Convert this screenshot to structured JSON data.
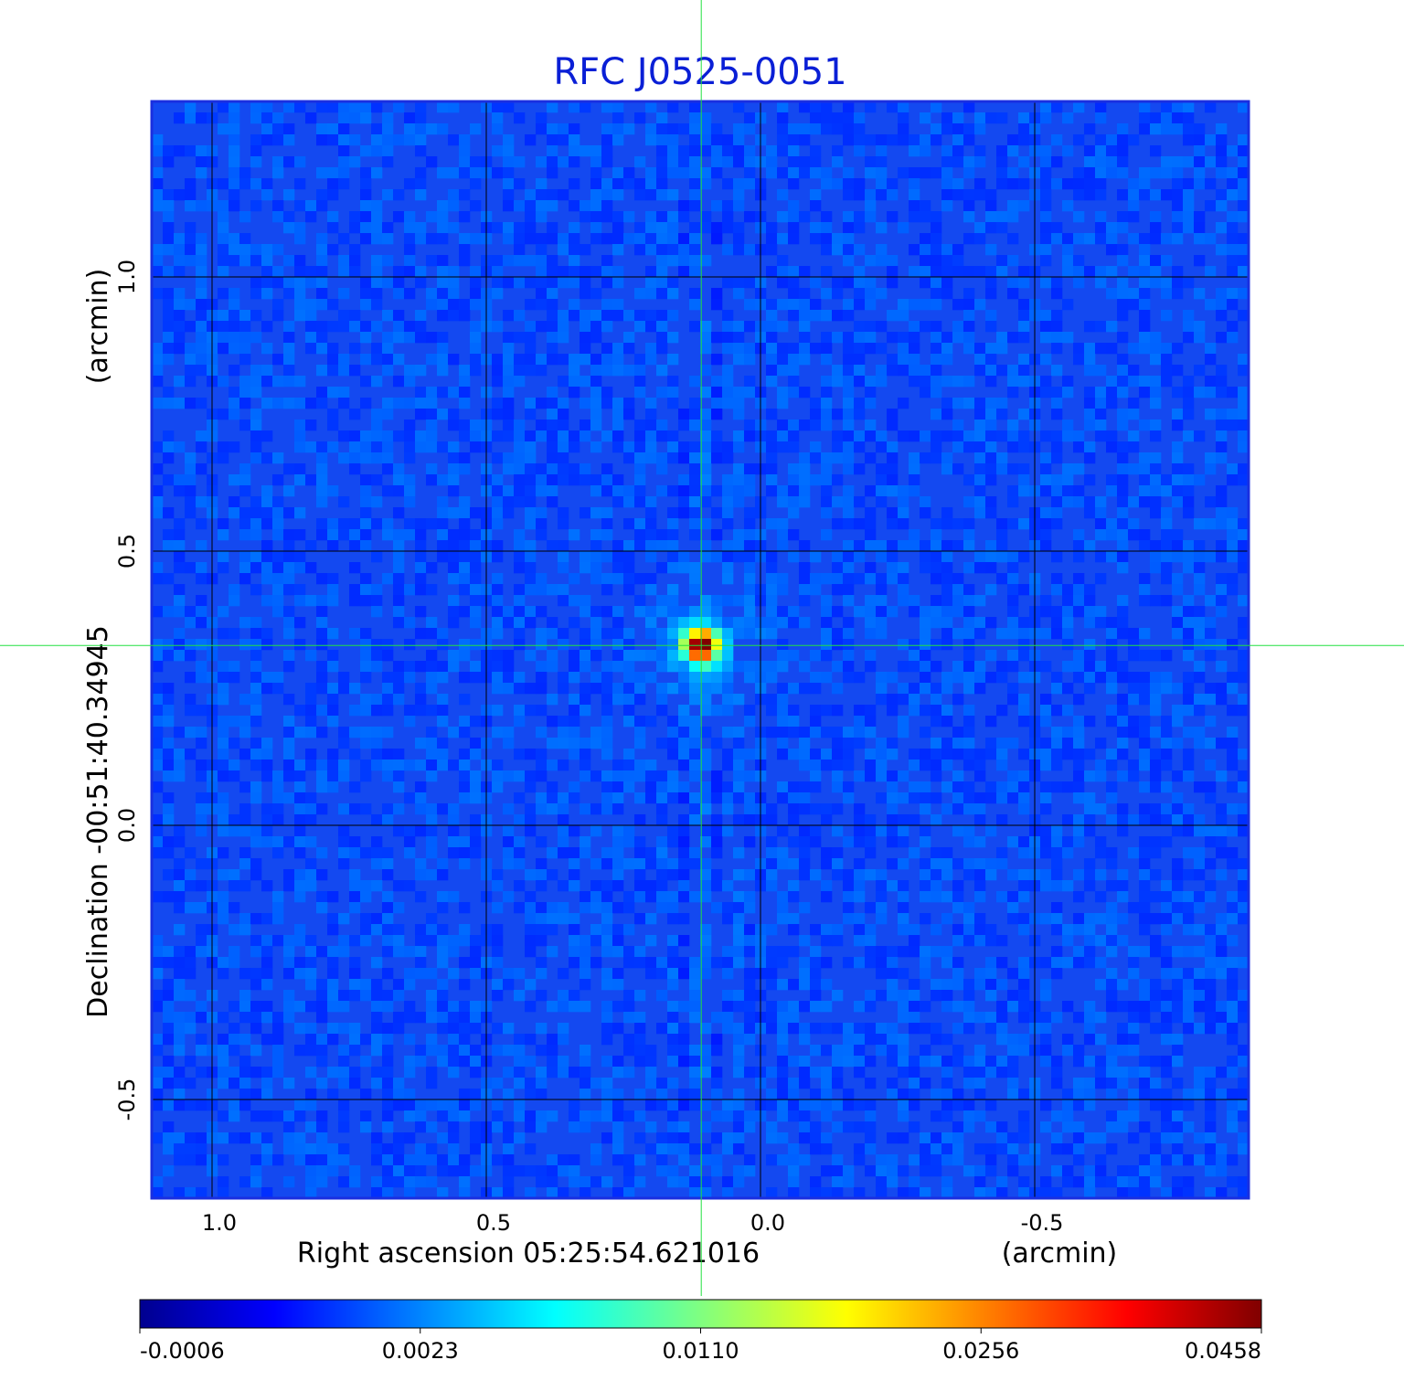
{
  "chart_data": {
    "type": "heatmap",
    "title": "RFC J0525-0051",
    "xlabel": "Right ascension  05:25:54.621016",
    "xunit": "(arcmin)",
    "ylabel": "Declination  -00:51:40.34945",
    "yunit": "(arcmin)",
    "xlim": [
      1.11,
      -0.89
    ],
    "ylim": [
      -0.68,
      1.32
    ],
    "x_ticks": [
      {
        "value": 1.0,
        "label": "1.0"
      },
      {
        "value": 0.5,
        "label": "0.5"
      },
      {
        "value": 0.0,
        "label": "0.0"
      },
      {
        "value": -0.5,
        "label": "-0.5"
      }
    ],
    "y_ticks": [
      {
        "value": 1.0,
        "label": "1.0"
      },
      {
        "value": 0.5,
        "label": "0.5"
      },
      {
        "value": 0.0,
        "label": "0.0"
      },
      {
        "value": -0.5,
        "label": "-0.5"
      }
    ],
    "grid": true,
    "crosshair": {
      "x": 0.108,
      "y": 0.328
    },
    "source": {
      "x": 0.108,
      "y": 0.328,
      "peak": 0.0458
    },
    "colormap": "jet",
    "colorbar": {
      "orientation": "horizontal",
      "tick_labels": [
        "-0.0006",
        "0.0023",
        "0.0110",
        "0.0256",
        "0.0458"
      ]
    },
    "background_level": 0.0015
  }
}
